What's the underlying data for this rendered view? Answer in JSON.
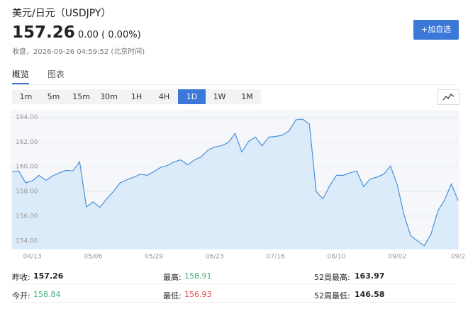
{
  "header": {
    "title": "美元/日元（USDJPY）",
    "price": "157.26",
    "change": "0.00 ( 0.00%)",
    "timestamp": "收盘，2026-09-26 04:59:52 (北京时间)",
    "button": "+加自选"
  },
  "tabs": [
    "概览",
    "图表"
  ],
  "ranges": [
    "1m",
    "5m",
    "15m",
    "30m",
    "1H",
    "4H",
    "1D",
    "1W",
    "1M"
  ],
  "chart_data": {
    "type": "area",
    "color": "#4a90d9",
    "fill": "#dcebf9",
    "grid": true,
    "categories": [
      null,
      null,
      null,
      "04/13",
      null,
      null,
      null,
      null,
      null,
      null,
      null,
      null,
      "05/06",
      null,
      null,
      null,
      null,
      null,
      null,
      null,
      null,
      "05/29",
      null,
      null,
      null,
      null,
      null,
      null,
      null,
      null,
      "06/23",
      null,
      null,
      null,
      null,
      null,
      null,
      null,
      null,
      "07/16",
      null,
      null,
      null,
      null,
      null,
      null,
      null,
      null,
      "08/10",
      null,
      null,
      null,
      null,
      null,
      null,
      null,
      null,
      "09/02",
      null,
      null,
      null,
      null,
      null,
      null,
      null,
      null,
      "09/2"
    ],
    "values": [
      159.6,
      159.65,
      158.7,
      158.85,
      159.3,
      158.9,
      159.25,
      159.5,
      159.7,
      159.65,
      160.4,
      156.75,
      157.15,
      156.7,
      157.4,
      158.0,
      158.7,
      158.95,
      159.15,
      159.4,
      159.3,
      159.6,
      159.95,
      160.1,
      160.4,
      160.55,
      160.15,
      160.55,
      160.8,
      161.35,
      161.6,
      161.7,
      161.95,
      162.7,
      161.2,
      162.05,
      162.4,
      161.7,
      162.4,
      162.45,
      162.55,
      162.9,
      163.8,
      163.85,
      163.45,
      158.0,
      157.4,
      158.45,
      159.3,
      159.3,
      159.5,
      159.65,
      158.4,
      159.0,
      159.15,
      159.4,
      160.05,
      158.55,
      156.1,
      154.4,
      154.0,
      153.6,
      154.55,
      156.4,
      157.3,
      158.6,
      157.26
    ],
    "ylim": [
      153.3,
      164.6
    ],
    "yticks": [
      {
        "value": 154,
        "label": "154.00"
      },
      {
        "value": 156,
        "label": "156.00"
      },
      {
        "value": 158,
        "label": "158.00"
      },
      {
        "value": 160,
        "label": "160.00"
      },
      {
        "value": 162,
        "label": "162.00"
      },
      {
        "value": 164,
        "label": "164.00"
      }
    ]
  },
  "stats": [
    [
      {
        "label": "昨收:",
        "value": "157.26"
      },
      {
        "label": "最高:",
        "value": "158.91"
      },
      {
        "label": "52周最高:",
        "value": "163.97"
      }
    ],
    [
      {
        "label": "今开:",
        "value": "158.84"
      },
      {
        "label": "最低:",
        "value": "156.93"
      },
      {
        "label": "52周最低:",
        "value": "146.58"
      }
    ]
  ]
}
